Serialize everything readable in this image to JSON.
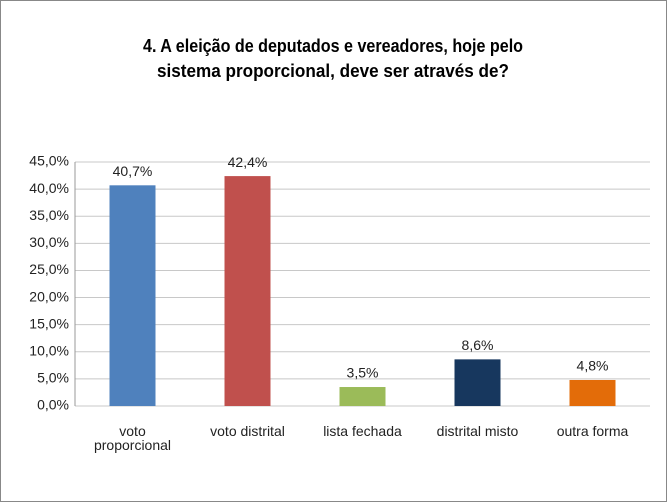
{
  "chart_data": {
    "type": "bar",
    "title": [
      "4. A eleição de deputados e vereadores, hoje pelo",
      "sistema proporcional, deve ser através de?"
    ],
    "categories": [
      "voto proporcional",
      "voto distrital",
      "lista fechada",
      "distrital misto",
      "outra forma"
    ],
    "values": [
      40.7,
      42.4,
      3.5,
      8.6,
      4.8
    ],
    "value_labels": [
      "40,7%",
      "42,4%",
      "3,5%",
      "8,6%",
      "4,8%"
    ],
    "colors": [
      "#4f81bd",
      "#c0504d",
      "#9bbb59",
      "#17375e",
      "#e36c09"
    ],
    "ylim": [
      0,
      45
    ],
    "yticks": [
      {
        "value": 0,
        "label": "0,0%"
      },
      {
        "value": 5,
        "label": "5,0%"
      },
      {
        "value": 10,
        "label": "10,0%"
      },
      {
        "value": 15,
        "label": "15,0%"
      },
      {
        "value": 20,
        "label": "20,0%"
      },
      {
        "value": 25,
        "label": "25,0%"
      },
      {
        "value": 30,
        "label": "30,0%"
      },
      {
        "value": 35,
        "label": "35,0%"
      },
      {
        "value": 40,
        "label": "40,0%"
      },
      {
        "value": 45,
        "label": "45,0%"
      }
    ],
    "grid": true
  }
}
